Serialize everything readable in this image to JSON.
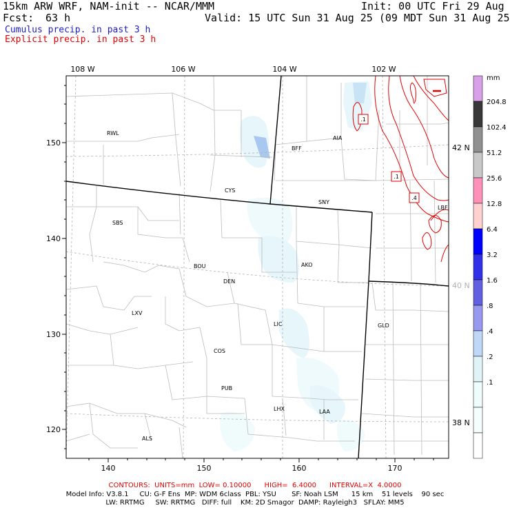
{
  "header": {
    "title": "15km ARW WRF, NAM-init -- NCAR/MMM",
    "init": "Init: 00 UTC Fri 29 Aug 25",
    "fcst_label": "Fcst:",
    "fcst_value": "63 h",
    "valid": "Valid: 15 UTC Sun 31 Aug 25 (09 MDT Sun 31 Aug 25)",
    "legend_cumulus": "Cumulus precip. in past 3 h",
    "legend_explicit": "Explicit precip. in past 3 h",
    "colors": {
      "cumulus": "#1c1cc8",
      "explicit": "#e00000"
    }
  },
  "axes": {
    "top_lon_labels": [
      "108 W",
      "106 W",
      "104 W",
      "102 W"
    ],
    "left_ticks": [
      "150",
      "140",
      "130",
      "120"
    ],
    "bottom_ticks": [
      "140",
      "150",
      "160",
      "170"
    ],
    "right_lat_labels": [
      "42 N",
      "40 N",
      "38 N"
    ]
  },
  "cities": [
    {
      "name": "RWL"
    },
    {
      "name": "BFF"
    },
    {
      "name": "AIA"
    },
    {
      "name": "CYS"
    },
    {
      "name": "SNY"
    },
    {
      "name": "SBS"
    },
    {
      "name": "LBF"
    },
    {
      "name": "BOU"
    },
    {
      "name": "DEN"
    },
    {
      "name": "AKO"
    },
    {
      "name": "LXV"
    },
    {
      "name": "LIC"
    },
    {
      "name": "GLD"
    },
    {
      "name": "COS"
    },
    {
      "name": "PUB"
    },
    {
      "name": "LHX"
    },
    {
      "name": "LAA"
    },
    {
      "name": "ALS"
    }
  ],
  "contour_labels": [
    ".1",
    ".1",
    ".4"
  ],
  "colorbar": {
    "unit": "mm",
    "labels": [
      "204.8",
      "102.4",
      "51.2",
      "25.6",
      "12.8",
      "6.4",
      "3.2",
      "1.6",
      ".8",
      ".4",
      ".2",
      ".1"
    ],
    "colors": [
      "#d8a0e8",
      "#383838",
      "#909090",
      "#c8c8c8",
      "#ff90b8",
      "#ffd0d0",
      "#0000ff",
      "#3030e8",
      "#6060e0",
      "#9898f0",
      "#c0d8f8",
      "#e0f4f8",
      "#eefcfc",
      "#f6fdfd",
      "#ffffff"
    ]
  },
  "footer": {
    "contours_line": "CONTOURS:  UNITS=mm  LOW= 0.10000      HIGH=  6.4000      INTERVAL=X  4.0000",
    "model_info": "Model Info: V3.8.1     CU: G-F Ens  MP: WDM 6class  PBL: YSU       SF: Noah LSM      15 km    51 levels    90 sec",
    "model_info2": "LW: RRTMG     SW: RRTMG   DIFF: full    KM: 2D Smagor  DAMP: Rayleigh3   SFLAY: MM5"
  }
}
